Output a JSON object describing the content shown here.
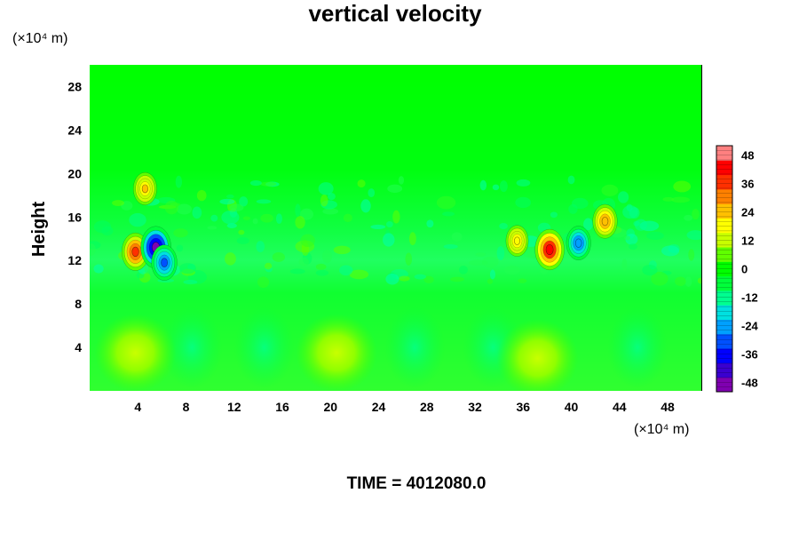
{
  "chart_data": {
    "type": "heatmap",
    "title": "vertical velocity",
    "ylabel": "Height",
    "xunit_label": "(×10⁴ m)",
    "yunit_label": "(×10⁴ m)",
    "x_ticks": [
      4,
      8,
      12,
      16,
      20,
      24,
      28,
      32,
      36,
      40,
      44,
      48
    ],
    "y_ticks": [
      4,
      8,
      12,
      16,
      20,
      24,
      28
    ],
    "xlim": [
      0,
      50.8
    ],
    "ylim": [
      0,
      30
    ],
    "colorbar": {
      "ticks": [
        48,
        36,
        24,
        12,
        0,
        -12,
        -24,
        -36,
        -48
      ],
      "range": [
        -52,
        52
      ],
      "colors": [
        "#7f00b0",
        "#3a00d0",
        "#0000ff",
        "#0050ff",
        "#00a0ff",
        "#00e0e0",
        "#00ff90",
        "#00ff3a",
        "#00ff00",
        "#60ff00",
        "#c8ff00",
        "#ffff00",
        "#ffc000",
        "#ff8000",
        "#ff3000",
        "#ff0000",
        "#ff8080"
      ]
    },
    "features": [
      {
        "x": 3.8,
        "y": 12.8,
        "value": 36
      },
      {
        "x": 5.5,
        "y": 13.2,
        "value": -48
      },
      {
        "x": 4.6,
        "y": 18.6,
        "value": 22
      },
      {
        "x": 6.2,
        "y": 11.8,
        "value": -30
      },
      {
        "x": 38.2,
        "y": 13.0,
        "value": 44
      },
      {
        "x": 40.6,
        "y": 13.6,
        "value": -26
      },
      {
        "x": 42.8,
        "y": 15.6,
        "value": 26
      },
      {
        "x": 35.5,
        "y": 13.8,
        "value": 18
      },
      {
        "x": 3.8,
        "y": 3.5,
        "value": 10
      },
      {
        "x": 20.5,
        "y": 3.5,
        "value": 10
      },
      {
        "x": 37.2,
        "y": 3.0,
        "value": 10
      }
    ]
  },
  "time_label": "TIME = 4012080.0"
}
